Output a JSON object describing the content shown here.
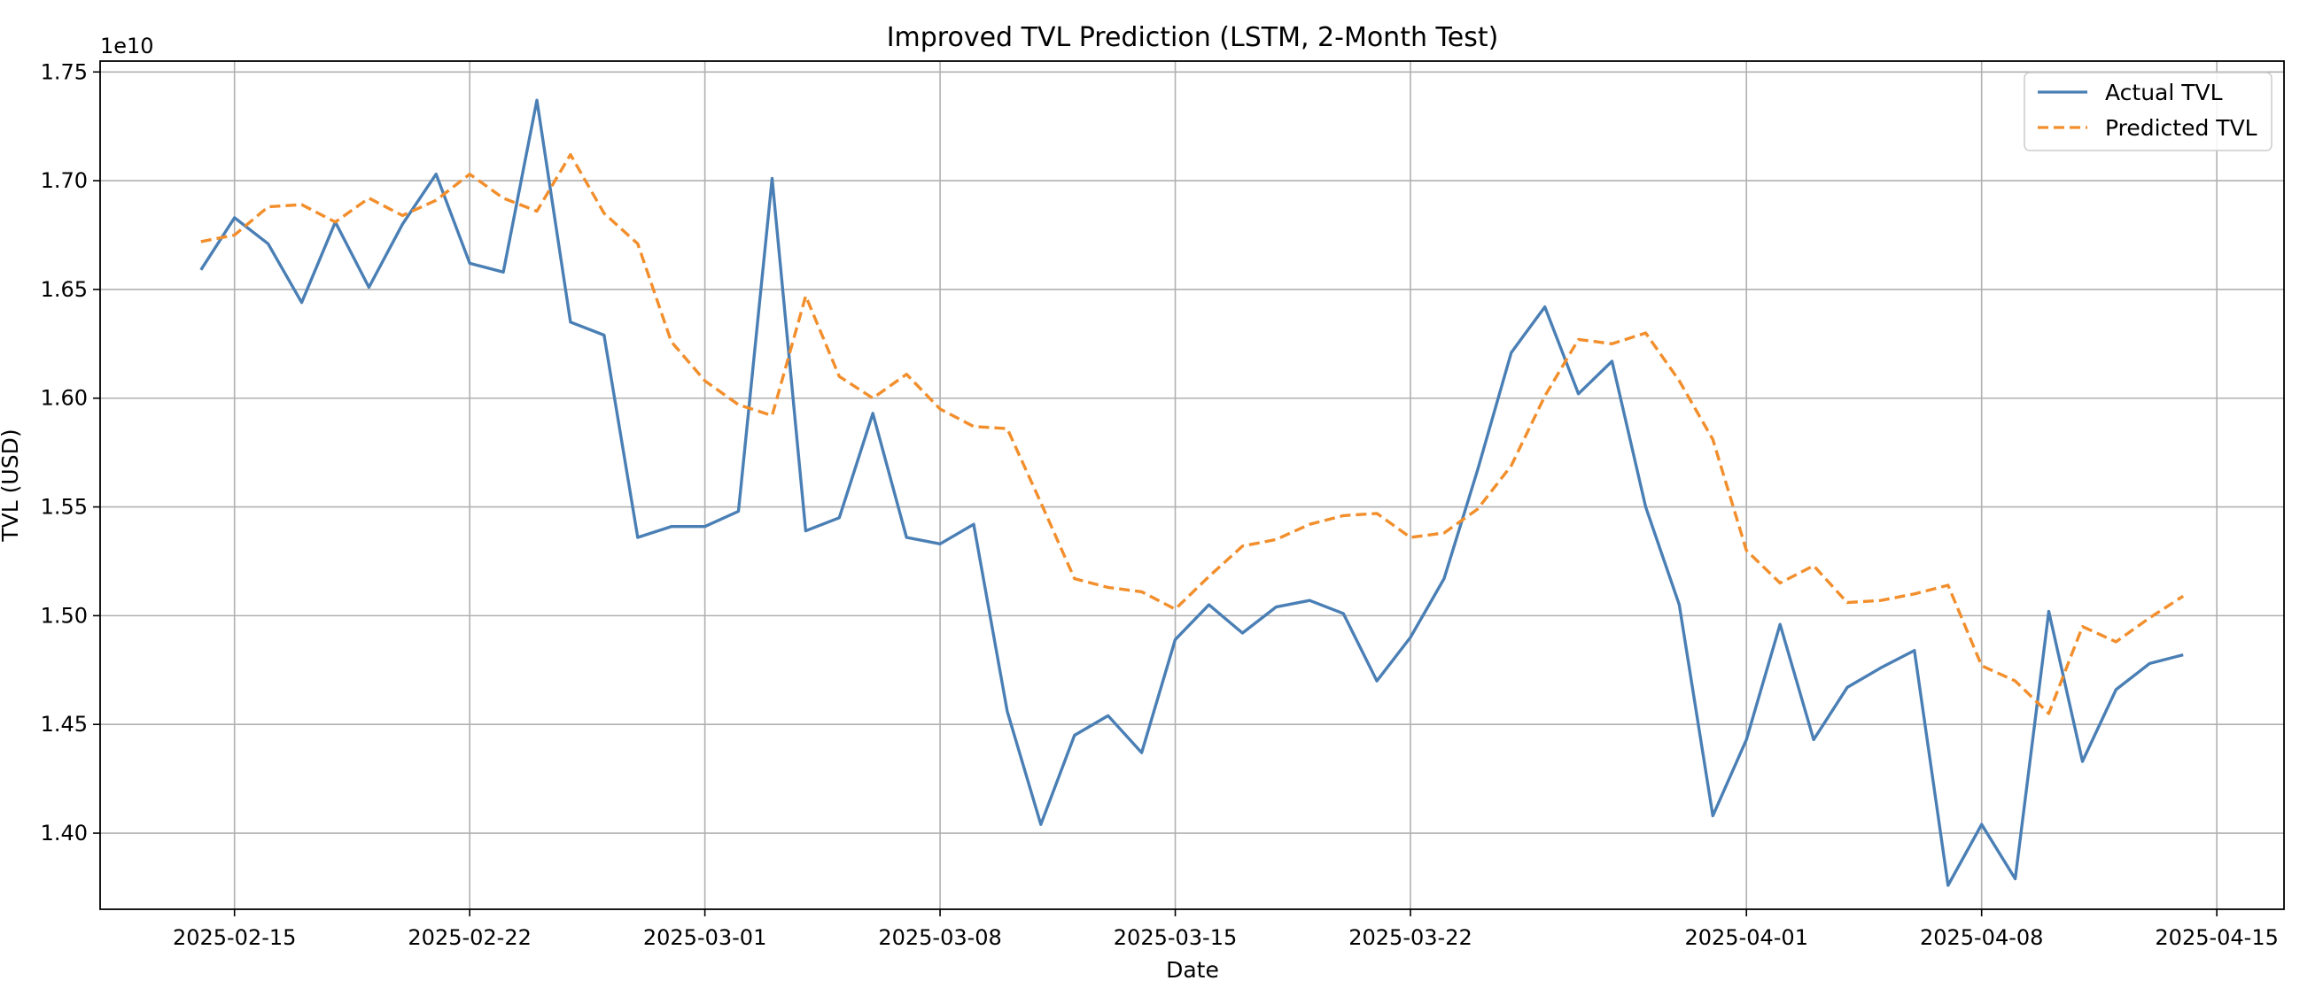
{
  "chart_data": {
    "type": "line",
    "title": "Improved TVL Prediction (LSTM, 2-Month Test)",
    "xlabel": "Date",
    "ylabel": "TVL (USD)",
    "offset_label": "1e10",
    "grid": true,
    "legend_position": "top-right",
    "xlim": [
      "2025-02-11",
      "2025-04-17"
    ],
    "ylim": [
      1.365,
      1.755
    ],
    "x_ticks": [
      "2025-02-15",
      "2025-02-22",
      "2025-03-01",
      "2025-03-08",
      "2025-03-15",
      "2025-03-22",
      "2025-04-01",
      "2025-04-08",
      "2025-04-15"
    ],
    "y_ticks": [
      1.4,
      1.45,
      1.5,
      1.55,
      1.6,
      1.65,
      1.7,
      1.75
    ],
    "y_tick_labels": [
      "1.40",
      "1.45",
      "1.50",
      "1.55",
      "1.60",
      "1.65",
      "1.70",
      "1.75"
    ],
    "x": [
      "2025-02-14",
      "2025-02-15",
      "2025-02-16",
      "2025-02-17",
      "2025-02-18",
      "2025-02-19",
      "2025-02-20",
      "2025-02-21",
      "2025-02-22",
      "2025-02-23",
      "2025-02-24",
      "2025-02-25",
      "2025-02-26",
      "2025-02-27",
      "2025-02-28",
      "2025-03-01",
      "2025-03-02",
      "2025-03-03",
      "2025-03-04",
      "2025-03-05",
      "2025-03-06",
      "2025-03-07",
      "2025-03-08",
      "2025-03-09",
      "2025-03-10",
      "2025-03-11",
      "2025-03-12",
      "2025-03-13",
      "2025-03-14",
      "2025-03-15",
      "2025-03-16",
      "2025-03-17",
      "2025-03-18",
      "2025-03-19",
      "2025-03-20",
      "2025-03-21",
      "2025-03-22",
      "2025-03-23",
      "2025-03-24",
      "2025-03-25",
      "2025-03-26",
      "2025-03-27",
      "2025-03-28",
      "2025-03-29",
      "2025-03-30",
      "2025-03-31",
      "2025-04-01",
      "2025-04-02",
      "2025-04-03",
      "2025-04-04",
      "2025-04-05",
      "2025-04-06",
      "2025-04-07",
      "2025-04-08",
      "2025-04-09",
      "2025-04-10",
      "2025-04-11",
      "2025-04-12",
      "2025-04-13",
      "2025-04-14"
    ],
    "series": [
      {
        "name": "Actual TVL",
        "color": "#4a7fb5",
        "style": "solid",
        "values": [
          1.659,
          1.683,
          1.671,
          1.644,
          1.681,
          1.651,
          1.68,
          1.703,
          1.662,
          1.658,
          1.737,
          1.635,
          1.629,
          1.536,
          1.541,
          1.541,
          1.548,
          1.701,
          1.539,
          1.545,
          1.593,
          1.536,
          1.533,
          1.542,
          1.456,
          1.404,
          1.445,
          1.454,
          1.437,
          1.489,
          1.505,
          1.492,
          1.504,
          1.507,
          1.501,
          1.47,
          1.49,
          1.517,
          1.567,
          1.621,
          1.642,
          1.602,
          1.617,
          1.55,
          1.505,
          1.408,
          1.443,
          1.496,
          1.443,
          1.467,
          1.476,
          1.484,
          1.376,
          1.404,
          1.379,
          1.502,
          1.433,
          1.466,
          1.478,
          1.482
        ]
      },
      {
        "name": "Predicted TVL",
        "color": "#f28e2b",
        "style": "dashed",
        "values": [
          1.672,
          1.675,
          1.688,
          1.689,
          1.681,
          1.692,
          1.684,
          1.691,
          1.703,
          1.692,
          1.686,
          1.712,
          1.685,
          1.671,
          1.626,
          1.608,
          1.597,
          1.592,
          1.647,
          1.61,
          1.6,
          1.611,
          1.595,
          1.587,
          1.586,
          1.552,
          1.517,
          1.513,
          1.511,
          1.503,
          1.518,
          1.532,
          1.535,
          1.542,
          1.546,
          1.547,
          1.536,
          1.538,
          1.549,
          1.569,
          1.601,
          1.627,
          1.625,
          1.63,
          1.608,
          1.581,
          1.53,
          1.515,
          1.523,
          1.506,
          1.507,
          1.51,
          1.514,
          1.477,
          1.47,
          1.455,
          1.495,
          1.488,
          1.499,
          1.509
        ]
      }
    ]
  }
}
